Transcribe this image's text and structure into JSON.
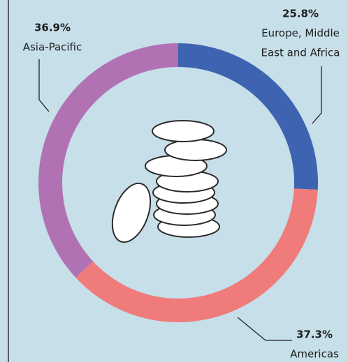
{
  "chart_data": {
    "type": "donut",
    "categories": [
      "Europe, Middle East and Africa",
      "Americas",
      "Asia-Pacific"
    ],
    "label_lines": [
      [
        "Europe, Middle",
        "East and Africa"
      ],
      [
        "Americas"
      ],
      [
        "Asia-Pacific"
      ]
    ],
    "values": [
      25.8,
      37.3,
      36.9
    ],
    "value_labels": [
      "25.8%",
      "37.3%",
      "36.9%"
    ],
    "colors": [
      "#3e63b0",
      "#f07b7b",
      "#b172b3"
    ]
  }
}
